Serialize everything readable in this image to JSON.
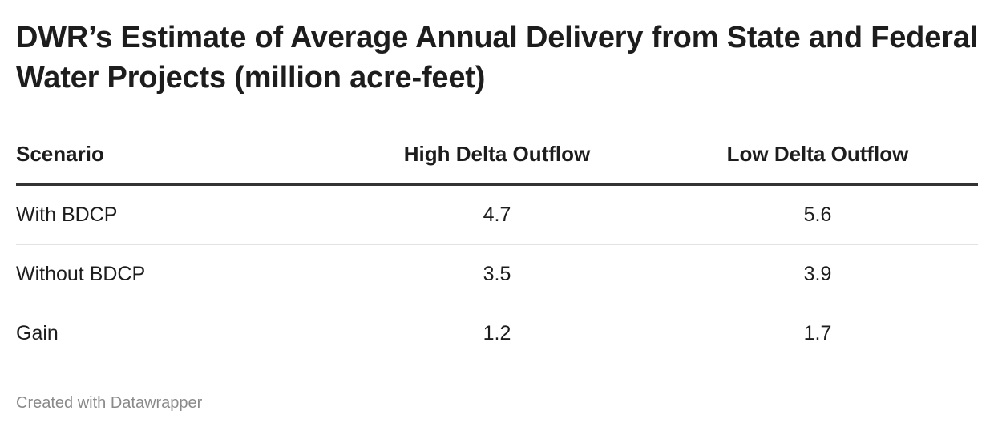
{
  "chart_data": {
    "type": "table",
    "title": "DWR’s Estimate of Average Annual Delivery from State and Federal Water Projects (million acre-feet)",
    "columns": [
      "Scenario",
      "High Delta Outflow",
      "Low Delta Outflow"
    ],
    "rows": [
      {
        "scenario": "With BDCP",
        "high": "4.7",
        "low": "5.6"
      },
      {
        "scenario": "Without BDCP",
        "high": "3.5",
        "low": "3.9"
      },
      {
        "scenario": "Gain",
        "high": "1.2",
        "low": "1.7"
      }
    ],
    "values": {
      "High Delta Outflow": [
        4.7,
        3.5,
        1.2
      ],
      "Low Delta Outflow": [
        5.6,
        3.9,
        1.7
      ]
    }
  },
  "footer": "Created with Datawrapper"
}
